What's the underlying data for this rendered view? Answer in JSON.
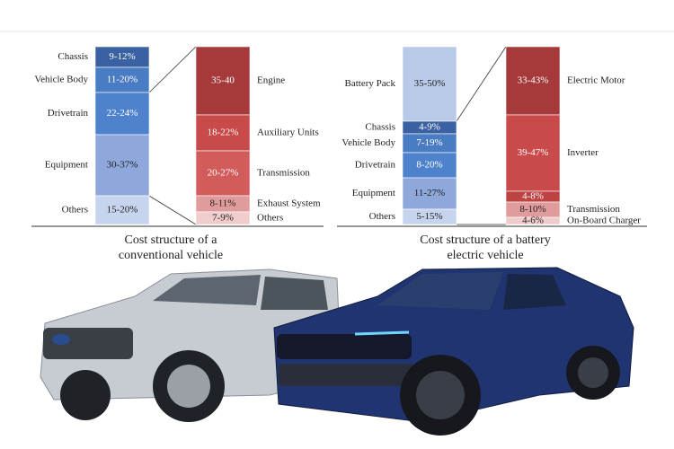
{
  "panels": [
    {
      "caption": [
        "Cost structure of a",
        "conventional vehicle"
      ],
      "main": [
        {
          "name": "Chassis",
          "value": "9-12%"
        },
        {
          "name": "Vehicle Body",
          "value": "11-20%"
        },
        {
          "name": "Drivetrain",
          "value": "22-24%"
        },
        {
          "name": "Equipment",
          "value": "30-37%"
        },
        {
          "name": "Others",
          "value": "15-20%"
        }
      ],
      "detail": [
        {
          "name": "Engine",
          "value": "35-40"
        },
        {
          "name": "Auxiliary Units",
          "value": "18-22%"
        },
        {
          "name": "Transmission",
          "value": "20-27%"
        },
        {
          "name": "Exhaust System",
          "value": "8-11%"
        },
        {
          "name": "Others",
          "value": "7-9%"
        }
      ]
    },
    {
      "caption": [
        "Cost structure of a  battery",
        "electric vehicle"
      ],
      "main": [
        {
          "name": "Battery Pack",
          "value": "35-50%"
        },
        {
          "name": "Chassis",
          "value": "4-9%"
        },
        {
          "name": "Vehicle Body",
          "value": "7-19%"
        },
        {
          "name": "Drivetrain",
          "value": "8-20%"
        },
        {
          "name": "Equipment",
          "value": "11-27%"
        },
        {
          "name": "Others",
          "value": "5-15%"
        }
      ],
      "detail": [
        {
          "name": "Electric Motor",
          "value": "33-43%"
        },
        {
          "name": "Inverter",
          "value": "39-47%"
        },
        {
          "value": "4-8%"
        },
        {
          "name": "Transmission",
          "value": "8-10%"
        },
        {
          "name": "On-Board Charger",
          "value": "4-6%"
        }
      ]
    }
  ]
}
